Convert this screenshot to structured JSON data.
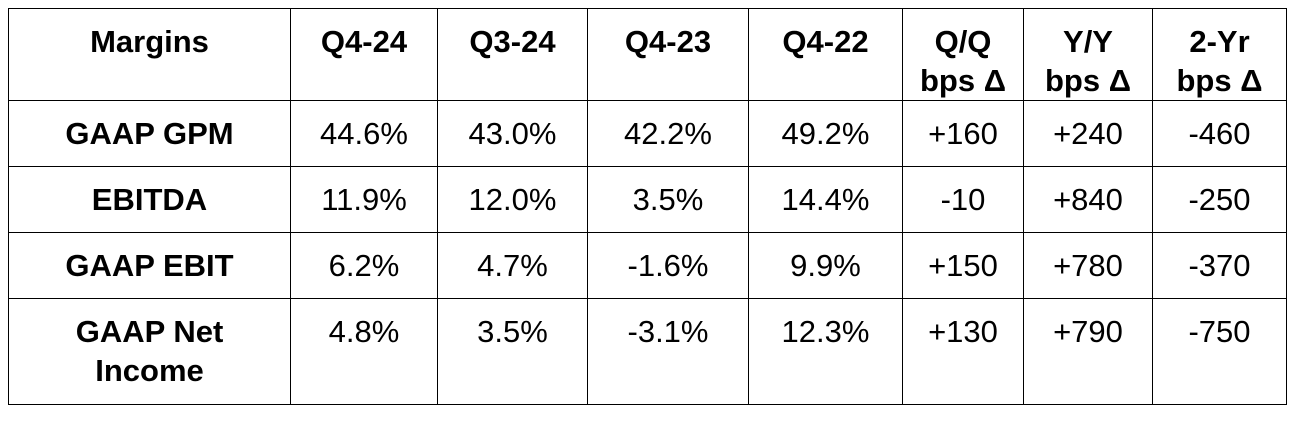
{
  "table": {
    "header": {
      "label": "Margins",
      "columns": [
        [
          "Q4-24"
        ],
        [
          "Q3-24"
        ],
        [
          "Q4-23"
        ],
        [
          "Q4-22"
        ],
        [
          "Q/Q",
          "bps Δ"
        ],
        [
          "Y/Y",
          "bps Δ"
        ],
        [
          "2-Yr",
          "bps Δ"
        ]
      ]
    },
    "rows": [
      {
        "label": [
          "GAAP GPM"
        ],
        "values": [
          "44.6%",
          "43.0%",
          "42.2%",
          "49.2%",
          "+160",
          "+240",
          "-460"
        ]
      },
      {
        "label": [
          "EBITDA"
        ],
        "values": [
          "11.9%",
          "12.0%",
          "3.5%",
          "14.4%",
          "-10",
          "+840",
          "-250"
        ]
      },
      {
        "label": [
          "GAAP EBIT"
        ],
        "values": [
          "6.2%",
          "4.7%",
          "-1.6%",
          "9.9%",
          "+150",
          "+780",
          "-370"
        ]
      },
      {
        "label": [
          "GAAP Net",
          "Income"
        ],
        "values": [
          "4.8%",
          "3.5%",
          "-3.1%",
          "12.3%",
          "+130",
          "+790",
          "-750"
        ]
      }
    ]
  }
}
